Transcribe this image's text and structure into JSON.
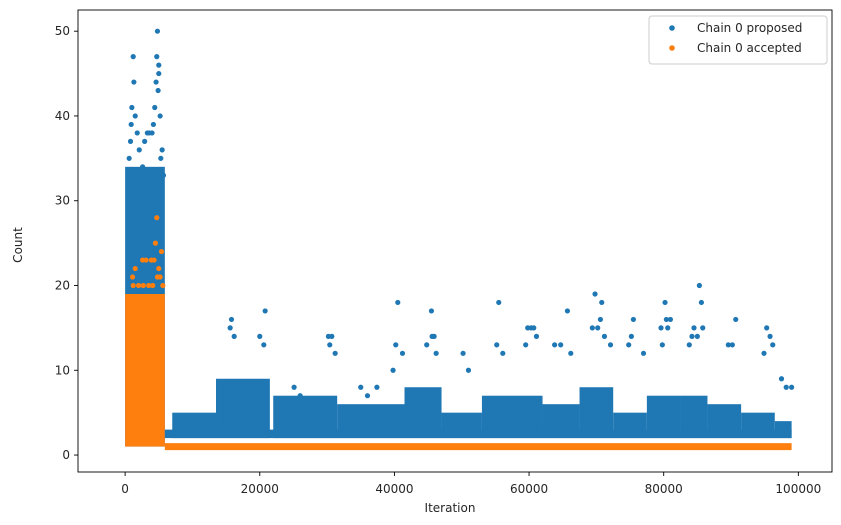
{
  "chart_data": {
    "type": "scatter",
    "title": "",
    "xlabel": "Iteration",
    "ylabel": "Count",
    "xlim": [
      -7000,
      105000
    ],
    "ylim": [
      -2,
      52.5
    ],
    "xticks": [
      0,
      20000,
      40000,
      60000,
      80000,
      100000
    ],
    "yticks": [
      0,
      10,
      20,
      30,
      40,
      50
    ],
    "grid": false,
    "legend": "top-right",
    "series": [
      {
        "name": "Chain 0 proposed",
        "color": "#1f77b4",
        "points": [
          [
            1200,
            47
          ],
          [
            1300,
            44
          ],
          [
            1000,
            41
          ],
          [
            1500,
            40
          ],
          [
            900,
            39
          ],
          [
            1800,
            38
          ],
          [
            2100,
            36
          ],
          [
            2600,
            34
          ],
          [
            3300,
            38
          ],
          [
            3600,
            38
          ],
          [
            4200,
            39
          ],
          [
            4400,
            41
          ],
          [
            4700,
            47
          ],
          [
            4800,
            50
          ],
          [
            5000,
            46
          ],
          [
            5000,
            45
          ],
          [
            4600,
            44
          ],
          [
            4900,
            43
          ],
          [
            5200,
            40
          ],
          [
            5500,
            36
          ],
          [
            5300,
            35
          ],
          [
            4000,
            38
          ],
          [
            2900,
            37
          ],
          [
            800,
            37
          ],
          [
            600,
            35
          ],
          [
            1600,
            33
          ],
          [
            3800,
            32
          ],
          [
            5700,
            33
          ],
          [
            2400,
            31
          ],
          [
            3100,
            30
          ],
          [
            1100,
            29
          ],
          [
            4500,
            28
          ],
          [
            15800,
            16
          ],
          [
            15600,
            15
          ],
          [
            16200,
            14
          ],
          [
            20800,
            17
          ],
          [
            20000,
            14
          ],
          [
            20600,
            13
          ],
          [
            25100,
            8
          ],
          [
            26000,
            7
          ],
          [
            30200,
            14
          ],
          [
            30700,
            14
          ],
          [
            30400,
            13
          ],
          [
            31200,
            12
          ],
          [
            35000,
            8
          ],
          [
            36000,
            7
          ],
          [
            37400,
            8
          ],
          [
            39800,
            10
          ],
          [
            40500,
            18
          ],
          [
            40200,
            13
          ],
          [
            41200,
            12
          ],
          [
            45500,
            17
          ],
          [
            45600,
            14
          ],
          [
            45900,
            14
          ],
          [
            44800,
            13
          ],
          [
            46200,
            12
          ],
          [
            50200,
            12
          ],
          [
            51000,
            10
          ],
          [
            55500,
            18
          ],
          [
            55200,
            13
          ],
          [
            56100,
            12
          ],
          [
            59800,
            15
          ],
          [
            60300,
            15
          ],
          [
            60700,
            15
          ],
          [
            61100,
            14
          ],
          [
            59500,
            13
          ],
          [
            63800,
            13
          ],
          [
            65700,
            17
          ],
          [
            64700,
            13
          ],
          [
            66200,
            12
          ],
          [
            69800,
            19
          ],
          [
            70800,
            18
          ],
          [
            70600,
            16
          ],
          [
            70200,
            15
          ],
          [
            71200,
            14
          ],
          [
            69400,
            15
          ],
          [
            72100,
            13
          ],
          [
            75500,
            16
          ],
          [
            75200,
            14
          ],
          [
            74800,
            13
          ],
          [
            77000,
            12
          ],
          [
            79600,
            15
          ],
          [
            80200,
            18
          ],
          [
            80400,
            16
          ],
          [
            81000,
            16
          ],
          [
            80600,
            15
          ],
          [
            79800,
            13
          ],
          [
            85300,
            20
          ],
          [
            85600,
            18
          ],
          [
            84500,
            15
          ],
          [
            85800,
            15
          ],
          [
            84200,
            14
          ],
          [
            85000,
            14
          ],
          [
            83800,
            13
          ],
          [
            90700,
            16
          ],
          [
            90200,
            13
          ],
          [
            89600,
            13
          ],
          [
            95300,
            15
          ],
          [
            95800,
            14
          ],
          [
            96200,
            13
          ],
          [
            94900,
            12
          ],
          [
            98200,
            8
          ],
          [
            99000,
            8
          ],
          [
            97500,
            9
          ]
        ]
      },
      {
        "name": "Chain 0 accepted",
        "color": "#ff7f0e",
        "points": [
          [
            4700,
            28
          ],
          [
            4500,
            25
          ],
          [
            2600,
            23
          ],
          [
            3100,
            23
          ],
          [
            3900,
            23
          ],
          [
            4300,
            23
          ],
          [
            1500,
            22
          ],
          [
            1100,
            21
          ],
          [
            4800,
            21
          ],
          [
            5200,
            21
          ],
          [
            5400,
            24
          ],
          [
            1200,
            20
          ],
          [
            2000,
            20
          ],
          [
            2700,
            20
          ],
          [
            3500,
            20
          ],
          [
            4100,
            20
          ],
          [
            5600,
            20
          ],
          [
            5000,
            22
          ]
        ]
      }
    ]
  }
}
